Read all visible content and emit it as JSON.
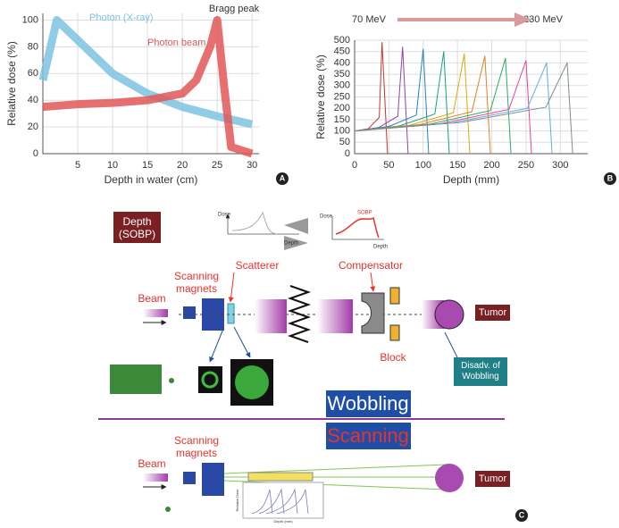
{
  "chart_data": [
    {
      "type": "line",
      "panel_label": "A",
      "y_label": "Relative dose (%)",
      "x_label": "Depth in water (cm)",
      "xlim": [
        0,
        31
      ],
      "xticks": [
        5,
        10,
        15,
        20,
        25,
        30
      ],
      "ylim": [
        0,
        105
      ],
      "yticks": [
        0,
        20,
        40,
        60,
        80,
        100
      ],
      "grid": true,
      "annotations": [
        "Bragg peak"
      ],
      "series": [
        {
          "name": "Photon (X-ray)",
          "color": "#7cc3e0",
          "x": [
            0,
            2,
            5,
            10,
            15,
            20,
            25,
            30
          ],
          "values": [
            55,
            100,
            85,
            60,
            45,
            35,
            28,
            22
          ]
        },
        {
          "name": "Photon beam",
          "color": "#e25757",
          "x": [
            0,
            5,
            10,
            15,
            20,
            22,
            24,
            25,
            26,
            27,
            30
          ],
          "values": [
            35,
            37,
            38,
            40,
            45,
            55,
            80,
            100,
            50,
            5,
            0
          ]
        }
      ]
    },
    {
      "type": "line",
      "panel_label": "B",
      "y_label": "Relative dose (%)",
      "x_label": "Depth (mm)",
      "xlim": [
        0,
        340
      ],
      "xticks": [
        0,
        50,
        100,
        150,
        200,
        250,
        300
      ],
      "ylim": [
        0,
        500
      ],
      "yticks": [
        0,
        50,
        100,
        150,
        200,
        250,
        300,
        350,
        400,
        450,
        500
      ],
      "grid": true,
      "annotations": [
        "70 MeV",
        "230 MeV"
      ],
      "series": [
        {
          "color": "#c0392b",
          "x": [
            0,
            20,
            36,
            40,
            48
          ],
          "values": [
            100,
            110,
            160,
            490,
            0
          ]
        },
        {
          "color": "#8e44ad",
          "x": [
            0,
            35,
            63,
            70,
            78
          ],
          "values": [
            100,
            115,
            165,
            470,
            0
          ]
        },
        {
          "color": "#2980b9",
          "x": [
            0,
            50,
            90,
            100,
            108
          ],
          "values": [
            100,
            120,
            170,
            460,
            0
          ]
        },
        {
          "color": "#16a085",
          "x": [
            0,
            65,
            117,
            130,
            138
          ],
          "values": [
            100,
            122,
            175,
            450,
            0
          ]
        },
        {
          "color": "#d4ac0d",
          "x": [
            0,
            80,
            144,
            160,
            168
          ],
          "values": [
            100,
            125,
            180,
            440,
            0
          ]
        },
        {
          "color": "#e67e22",
          "x": [
            0,
            95,
            171,
            190,
            198
          ],
          "values": [
            100,
            128,
            185,
            430,
            0
          ]
        },
        {
          "color": "#27ae60",
          "x": [
            0,
            110,
            198,
            220,
            228
          ],
          "values": [
            100,
            130,
            190,
            420,
            0
          ]
        },
        {
          "color": "#e84393",
          "x": [
            0,
            125,
            225,
            250,
            258
          ],
          "values": [
            100,
            132,
            195,
            410,
            0
          ]
        },
        {
          "color": "#5dade2",
          "x": [
            0,
            140,
            252,
            280,
            288
          ],
          "values": [
            100,
            135,
            200,
            400,
            0
          ]
        },
        {
          "color": "#7f8c8d",
          "x": [
            0,
            155,
            279,
            310,
            318
          ],
          "values": [
            100,
            138,
            205,
            400,
            0
          ]
        }
      ]
    }
  ],
  "diagram": {
    "panel_label": "C",
    "sobp_label": "Depth (SOBP)",
    "sketch": {
      "dose_left": "Dose",
      "depth_left": "Depth",
      "sobp": "SOBP",
      "dose_right": "Dose",
      "depth_right": "Depth"
    },
    "wobbling": {
      "scanning_magnets": "Scanning magnets",
      "scatterer": "Scatterer",
      "compensator": "Compensator",
      "beam": "Beam",
      "tumor": "Tumor",
      "block": "Block",
      "disadvantage": "Disadv. of Wobbling"
    },
    "wobbling_title": "Wobbling",
    "scanning_title": "Scanning",
    "scanning": {
      "scanning_magnets": "Scanning magnets",
      "beam": "Beam",
      "tumor": "Tumor",
      "inset_y_label": "Relative Dose",
      "inset_x_label": "Depth (mm)"
    }
  }
}
